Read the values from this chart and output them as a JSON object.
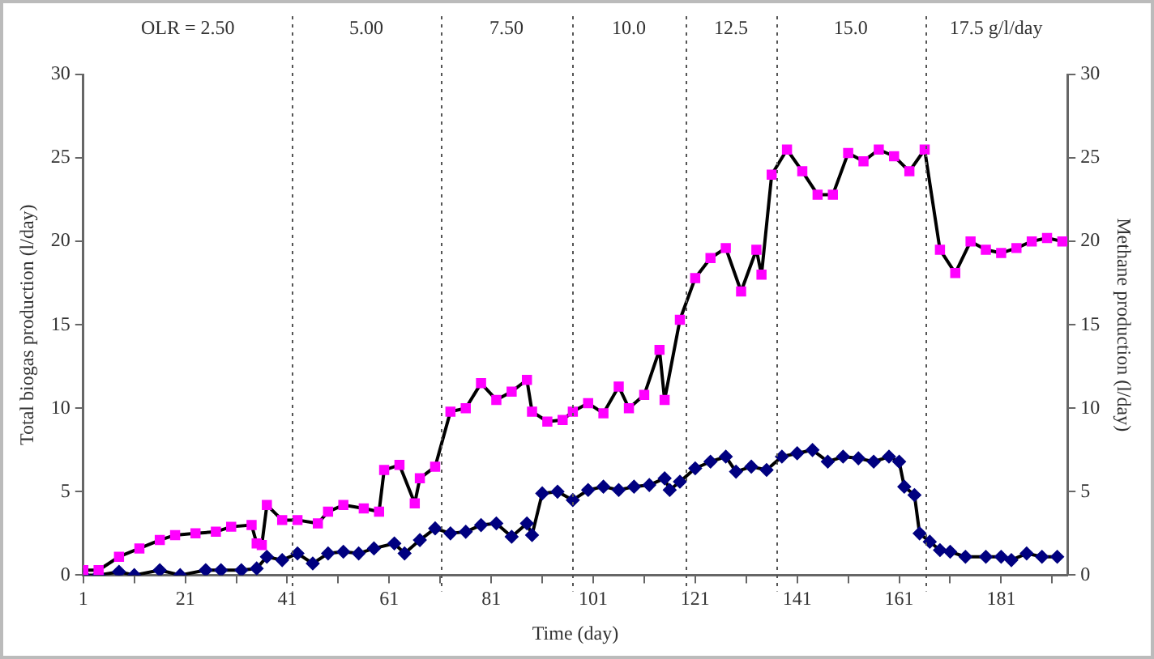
{
  "chart_data": {
    "type": "line",
    "xlabel": "Time (day)",
    "ylabel": "Total biogas production (l/day)",
    "y2label": "Methane production (l/day)",
    "xlim": [
      1,
      194
    ],
    "ylim": [
      0,
      30
    ],
    "y2lim": [
      0,
      30
    ],
    "xticks": [
      1,
      {
        "value": 11,
        "label": null
      },
      21,
      {
        "value": 31,
        "label": null
      },
      41,
      {
        "value": 51,
        "label": null
      },
      61,
      {
        "value": 71,
        "label": null
      },
      81,
      {
        "value": 91,
        "label": null
      },
      101,
      {
        "value": 111,
        "label": null
      },
      121,
      {
        "value": 131,
        "label": null
      },
      141,
      {
        "value": 151,
        "label": null
      },
      161,
      {
        "value": 171,
        "label": null
      },
      181,
      {
        "value": 191,
        "label": null
      }
    ],
    "yticks": [
      0,
      5,
      10,
      15,
      20,
      25,
      30
    ],
    "y2ticks": [
      0,
      5,
      10,
      15,
      20,
      25,
      30
    ],
    "grid": false,
    "legend": false,
    "line_style": "solid",
    "ref_lines": [
      {
        "axis": "x",
        "value": 42,
        "line_style": "dotted"
      },
      {
        "axis": "x",
        "value": 71,
        "line_style": "dotted"
      },
      {
        "axis": "x",
        "value": 97,
        "line_style": "dotted"
      },
      {
        "axis": "x",
        "value": 119,
        "line_style": "dotted"
      },
      {
        "axis": "x",
        "value": 137,
        "line_style": "dotted"
      },
      {
        "axis": "x",
        "value": 166,
        "line_style": "dotted"
      }
    ],
    "annotations": [
      "OLR = 2.50",
      "5.00",
      "7.50",
      "10.0",
      "12.5",
      "15.0",
      "17.5 g/l/day"
    ],
    "series": [
      {
        "color": "#ff00ff",
        "marker": "square",
        "x": [
          1,
          4,
          8,
          12,
          16,
          19,
          23,
          27,
          30,
          34,
          35,
          36,
          37,
          40,
          43,
          47,
          49,
          52,
          56,
          59,
          60,
          63,
          66,
          67,
          70,
          73,
          76,
          79,
          82,
          85,
          88,
          89,
          92,
          95,
          97,
          100,
          103,
          106,
          108,
          111,
          114,
          115,
          118,
          121,
          124,
          127,
          130,
          133,
          134,
          136,
          139,
          142,
          145,
          148,
          151,
          154,
          157,
          160,
          163,
          166,
          169,
          172,
          175,
          178,
          181,
          184,
          187,
          190,
          193
        ],
        "values": [
          0.3,
          0.3,
          1.1,
          1.6,
          2.1,
          2.4,
          2.5,
          2.6,
          2.9,
          3.0,
          1.9,
          1.8,
          4.2,
          3.3,
          3.3,
          3.1,
          3.8,
          4.2,
          4.0,
          3.8,
          6.3,
          6.6,
          4.3,
          5.8,
          6.5,
          9.8,
          10.0,
          11.5,
          10.5,
          11.0,
          11.7,
          9.8,
          9.2,
          9.3,
          9.8,
          10.3,
          9.7,
          11.3,
          10.0,
          10.8,
          13.5,
          10.5,
          15.3,
          17.8,
          19.0,
          19.6,
          17.0,
          19.5,
          18.0,
          24.0,
          25.5,
          24.2,
          22.8,
          22.8,
          25.3,
          24.8,
          25.5,
          25.1,
          24.2,
          25.5,
          19.5,
          18.1,
          20.0,
          19.5,
          19.3,
          19.6,
          20.0,
          20.2,
          20.0
        ]
      },
      {
        "color": "#000080",
        "marker": "diamond",
        "axis": "y2",
        "x": [
          1,
          4,
          8,
          11,
          16,
          20,
          25,
          28,
          32,
          35,
          37,
          40,
          43,
          46,
          49,
          52,
          55,
          58,
          62,
          64,
          67,
          70,
          73,
          76,
          79,
          82,
          85,
          88,
          89,
          91,
          94,
          97,
          100,
          103,
          106,
          109,
          112,
          115,
          116,
          118,
          121,
          124,
          127,
          129,
          132,
          135,
          138,
          141,
          144,
          147,
          150,
          153,
          156,
          159,
          161,
          162,
          164,
          165,
          167,
          169,
          171,
          174,
          178,
          181,
          183,
          186,
          189,
          192
        ],
        "values": [
          0,
          0,
          0.2,
          0,
          0.3,
          0,
          0.3,
          0.3,
          0.3,
          0.4,
          1.1,
          0.9,
          1.3,
          0.7,
          1.3,
          1.4,
          1.3,
          1.6,
          1.9,
          1.3,
          2.1,
          2.8,
          2.5,
          2.6,
          3.0,
          3.1,
          2.3,
          3.1,
          2.4,
          4.9,
          5.0,
          4.5,
          5.1,
          5.3,
          5.1,
          5.3,
          5.4,
          5.8,
          5.1,
          5.6,
          6.4,
          6.8,
          7.1,
          6.2,
          6.5,
          6.3,
          7.1,
          7.3,
          7.5,
          6.8,
          7.1,
          7.0,
          6.8,
          7.1,
          6.8,
          5.3,
          4.8,
          2.5,
          2.0,
          1.5,
          1.4,
          1.1,
          1.1,
          1.1,
          0.9,
          1.3,
          1.1,
          1.1
        ]
      }
    ]
  }
}
